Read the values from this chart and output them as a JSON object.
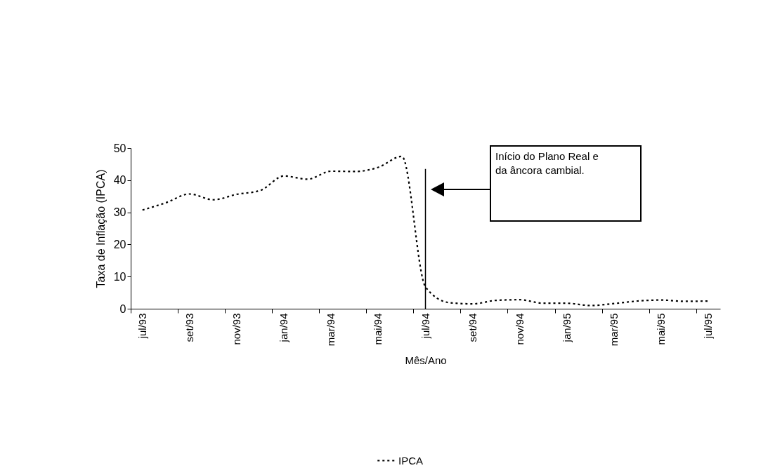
{
  "chart_data": {
    "type": "line",
    "xlabel": "Mês/Ano",
    "ylabel": "Taxa de Inflação (IPCA)",
    "categories": [
      "jul/93",
      null,
      "set/93",
      null,
      "nov/93",
      null,
      "jan/94",
      null,
      "mar/94",
      null,
      "mai/94",
      null,
      "jul/94",
      null,
      "set/94",
      null,
      "nov/94",
      null,
      "jan/95",
      null,
      "mar/95",
      null,
      "mai/95",
      null,
      "jul/95"
    ],
    "series": [
      {
        "name": "IPCA",
        "color": "#000000",
        "values": [
          30.7,
          33.0,
          35.7,
          33.9,
          35.6,
          36.8,
          41.3,
          40.3,
          42.8,
          42.7,
          44.0,
          47.4,
          6.8,
          1.9,
          1.5,
          2.6,
          2.8,
          1.7,
          1.7,
          1.0,
          1.6,
          2.4,
          2.7,
          2.3,
          2.4
        ]
      }
    ],
    "ylim": [
      0,
      50
    ],
    "yticks": [
      0,
      10,
      20,
      30,
      40,
      50
    ],
    "ref_lines": [
      {
        "axis": "x",
        "value": "jul/94"
      }
    ],
    "annotations": [
      "Início do Plano Real e da âncora cambial."
    ],
    "grid": false,
    "legend": "bottom",
    "marker": "none",
    "line_style": "dotted"
  }
}
